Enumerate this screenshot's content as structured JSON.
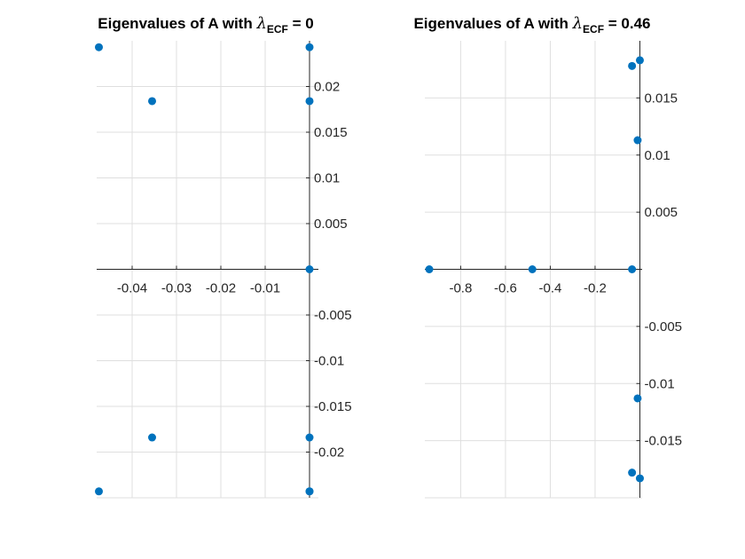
{
  "colors": {
    "points": "#0072BD",
    "axis": "#262626",
    "grid": "#dfdfdf"
  },
  "chart_data": [
    {
      "type": "scatter",
      "title": {
        "prefix": "Eigenvalues of A with ",
        "symbol": "λ",
        "subscript": "ECF",
        "suffix": " = 0"
      },
      "xlabel": "",
      "ylabel": "",
      "grid": true,
      "axis_location": "origin",
      "xlim": [
        -0.048,
        0.002
      ],
      "ylim": [
        -0.025,
        0.025
      ],
      "xticks": [
        -0.04,
        -0.03,
        -0.02,
        -0.01
      ],
      "xtick_labels": [
        "-0.04",
        "-0.03",
        "-0.02",
        "-0.01"
      ],
      "yticks": [
        0.02,
        0.015,
        0.01,
        0.005,
        -0.005,
        -0.01,
        -0.015,
        -0.02
      ],
      "ytick_labels": [
        "0.02",
        "0.015",
        "0.01",
        "0.005",
        "-0.005",
        "-0.01",
        "-0.015",
        "-0.02"
      ],
      "x": [
        -0.0475,
        -0.0355,
        0.0,
        0.0,
        0.0,
        -0.0355,
        0.0,
        0.0,
        -0.0475,
        0.0
      ],
      "y": [
        0.0243,
        0.0184,
        0.0243,
        0.0184,
        0.0,
        -0.0184,
        -0.0184,
        -0.0243,
        -0.0243,
        -0.0243
      ]
    },
    {
      "type": "scatter",
      "title": {
        "prefix": "Eigenvalues of A with ",
        "symbol": "λ",
        "subscript": "ECF",
        "suffix": " = 0.46"
      },
      "xlabel": "",
      "ylabel": "",
      "grid": true,
      "axis_location": "origin",
      "xlim": [
        -0.96,
        0.01
      ],
      "ylim": [
        -0.02,
        0.02
      ],
      "xticks": [
        -0.8,
        -0.6,
        -0.4,
        -0.2
      ],
      "xtick_labels": [
        "-0.8",
        "-0.6",
        "-0.4",
        "-0.2"
      ],
      "yticks": [
        0.015,
        0.01,
        0.005,
        -0.005,
        -0.01,
        -0.015
      ],
      "ytick_labels": [
        "0.015",
        "0.01",
        "0.005",
        "-0.005",
        "-0.01",
        "-0.015"
      ],
      "x": [
        -0.94,
        -0.48,
        -0.035,
        -0.035,
        0.0,
        -0.01,
        -0.01,
        -0.035,
        0.0
      ],
      "y": [
        0.0,
        0.0,
        0.0,
        0.0178,
        0.0183,
        0.0113,
        -0.0113,
        -0.0178,
        -0.0183
      ]
    }
  ]
}
